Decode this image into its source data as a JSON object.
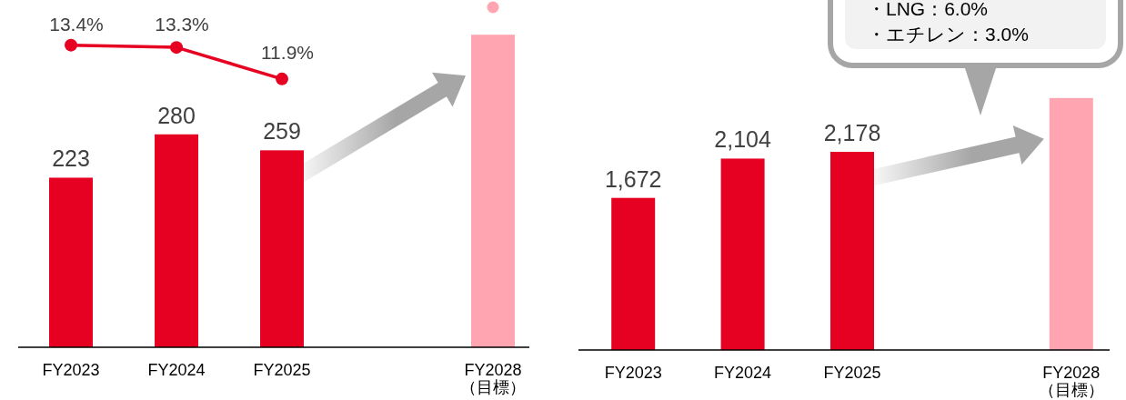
{
  "chart_data": [
    {
      "type": "bar",
      "categories": [
        "FY2023",
        "FY2024",
        "FY2025",
        null,
        "FY2028\n（目標）"
      ],
      "tick_labels": "x",
      "series": [
        {
          "colors": [
            "#e60021",
            "#e60021",
            "#e60021",
            null,
            "#ffa5b2"
          ],
          "values": [
            223,
            280,
            259,
            null,
            411
          ],
          "value_labels": [
            "223",
            "280",
            "259",
            null,
            null
          ]
        },
        {
          "type": "line",
          "axis": "y2",
          "color": "#e60021",
          "marker": "circle",
          "values": [
            13.4,
            13.3,
            11.9,
            null,
            null
          ],
          "value_labels": [
            "13.4%",
            "13.3%",
            "11.9%",
            null,
            null
          ]
        }
      ]
    },
    {
      "type": "bar",
      "categories": [
        "FY2023",
        "FY2024",
        "FY2025",
        null,
        "FY2028\n（目標）"
      ],
      "tick_labels": "x",
      "annotations": [
        "・LNG：6.0%",
        "・エチレン：3.0%"
      ],
      "series": [
        {
          "colors": [
            "#e60021",
            "#e60021",
            "#e60021",
            null,
            "#ffa5b2"
          ],
          "values": [
            1672,
            2104,
            2178,
            null,
            2770
          ],
          "value_labels": [
            "1,672",
            "2,104",
            "2,178",
            null,
            null
          ]
        }
      ]
    }
  ]
}
